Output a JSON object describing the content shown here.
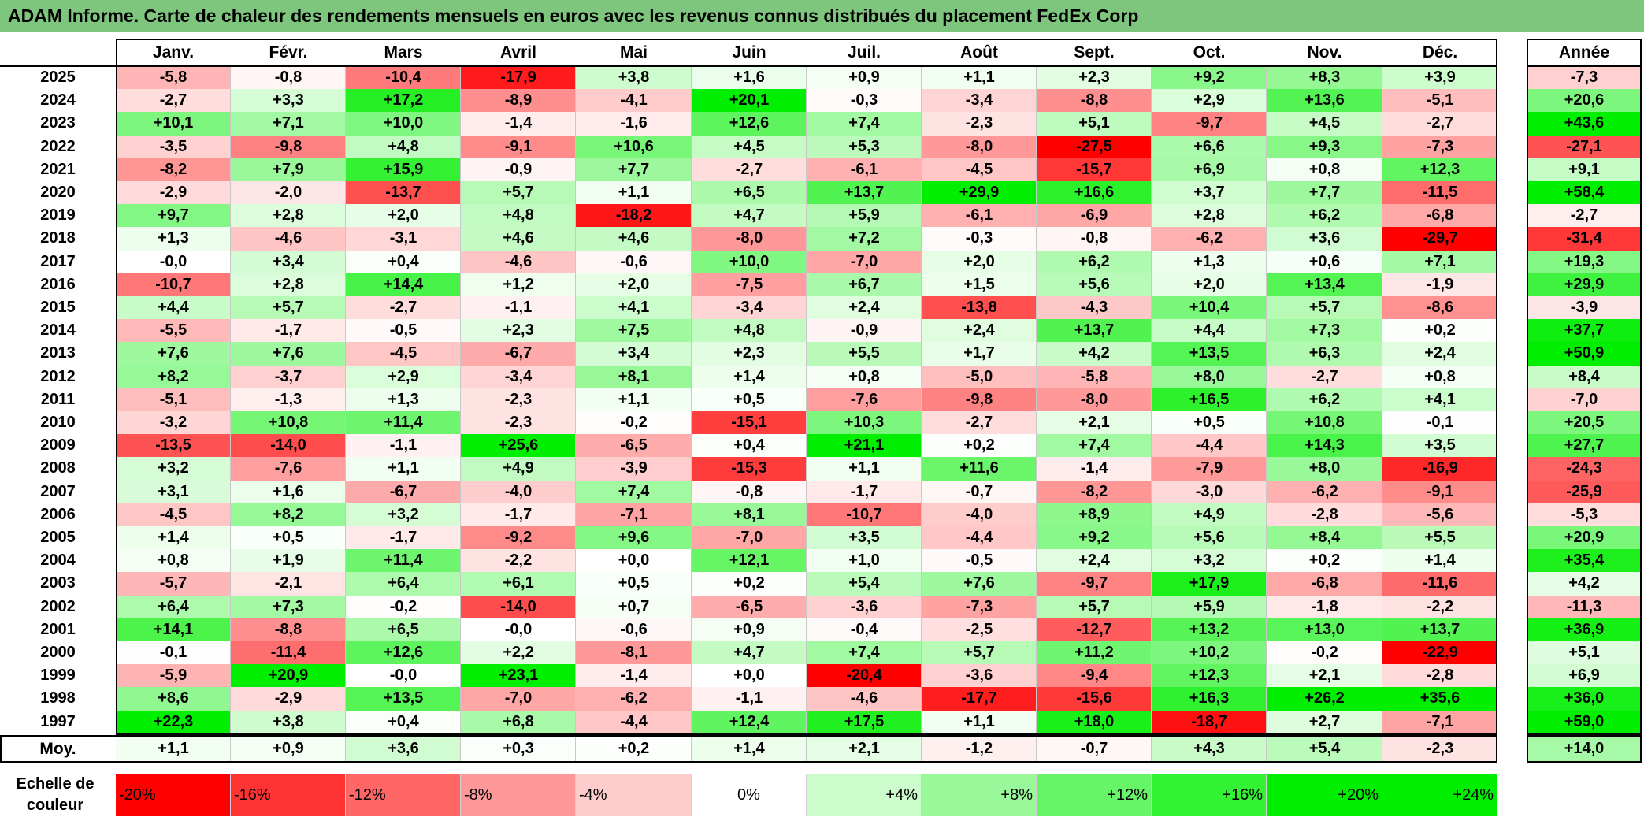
{
  "title": "ADAM Informe. Carte de chaleur des rendements mensuels en euros avec les revenus connus distribués du placement FedEx Corp",
  "chart_data": {
    "type": "heatmap",
    "title": "ADAM Informe. Carte de chaleur des rendements mensuels en euros avec les revenus connus distribués du placement FedEx Corp",
    "months": [
      "Janv.",
      "Févr.",
      "Mars",
      "Avril",
      "Mai",
      "Juin",
      "Juil.",
      "Août",
      "Sept.",
      "Oct.",
      "Nov.",
      "Déc."
    ],
    "year_header": "Année",
    "rows": [
      {
        "year": "2025",
        "values": [
          "-5,8",
          "-0,8",
          "-10,4",
          "-17,9",
          "+3,8",
          "+1,6",
          "+0,9",
          "+1,1",
          "+2,3",
          "+9,2",
          "+8,3",
          "+3,9"
        ],
        "annual": "-7,3"
      },
      {
        "year": "2024",
        "values": [
          "-2,7",
          "+3,3",
          "+17,2",
          "-8,9",
          "-4,1",
          "+20,1",
          "-0,3",
          "-3,4",
          "-8,8",
          "+2,9",
          "+13,6",
          "-5,1"
        ],
        "annual": "+20,6"
      },
      {
        "year": "2023",
        "values": [
          "+10,1",
          "+7,1",
          "+10,0",
          "-1,4",
          "-1,6",
          "+12,6",
          "+7,4",
          "-2,3",
          "+5,1",
          "-9,7",
          "+4,5",
          "-2,7"
        ],
        "annual": "+43,6"
      },
      {
        "year": "2022",
        "values": [
          "-3,5",
          "-9,8",
          "+4,8",
          "-9,1",
          "+10,6",
          "+4,5",
          "+5,3",
          "-8,0",
          "-27,5",
          "+6,6",
          "+9,3",
          "-7,3"
        ],
        "annual": "-27,1"
      },
      {
        "year": "2021",
        "values": [
          "-8,2",
          "+7,9",
          "+15,9",
          "-0,9",
          "+7,7",
          "-2,7",
          "-6,1",
          "-4,5",
          "-15,7",
          "+6,9",
          "+0,8",
          "+12,3"
        ],
        "annual": "+9,1"
      },
      {
        "year": "2020",
        "values": [
          "-2,9",
          "-2,0",
          "-13,7",
          "+5,7",
          "+1,1",
          "+6,5",
          "+13,7",
          "+29,9",
          "+16,6",
          "+3,7",
          "+7,7",
          "-11,5"
        ],
        "annual": "+58,4"
      },
      {
        "year": "2019",
        "values": [
          "+9,7",
          "+2,8",
          "+2,0",
          "+4,8",
          "-18,2",
          "+4,7",
          "+5,9",
          "-6,1",
          "-6,9",
          "+2,8",
          "+6,2",
          "-6,8"
        ],
        "annual": "-2,7"
      },
      {
        "year": "2018",
        "values": [
          "+1,3",
          "-4,6",
          "-3,1",
          "+4,6",
          "+4,6",
          "-8,0",
          "+7,2",
          "-0,3",
          "-0,8",
          "-6,2",
          "+3,6",
          "-29,7"
        ],
        "annual": "-31,4"
      },
      {
        "year": "2017",
        "values": [
          "-0,0",
          "+3,4",
          "+0,4",
          "-4,6",
          "-0,6",
          "+10,0",
          "-7,0",
          "+2,0",
          "+6,2",
          "+1,3",
          "+0,6",
          "+7,1"
        ],
        "annual": "+19,3"
      },
      {
        "year": "2016",
        "values": [
          "-10,7",
          "+2,8",
          "+14,4",
          "+1,2",
          "+2,0",
          "-7,5",
          "+6,7",
          "+1,5",
          "+5,6",
          "+2,0",
          "+13,4",
          "-1,9"
        ],
        "annual": "+29,9"
      },
      {
        "year": "2015",
        "values": [
          "+4,4",
          "+5,7",
          "-2,7",
          "-1,1",
          "+4,1",
          "-3,4",
          "+2,4",
          "-13,8",
          "-4,3",
          "+10,4",
          "+5,7",
          "-8,6"
        ],
        "annual": "-3,9"
      },
      {
        "year": "2014",
        "values": [
          "-5,5",
          "-1,7",
          "-0,5",
          "+2,3",
          "+7,5",
          "+4,8",
          "-0,9",
          "+2,4",
          "+13,7",
          "+4,4",
          "+7,3",
          "+0,2"
        ],
        "annual": "+37,7"
      },
      {
        "year": "2013",
        "values": [
          "+7,6",
          "+7,6",
          "-4,5",
          "-6,7",
          "+3,4",
          "+2,3",
          "+5,5",
          "+1,7",
          "+4,2",
          "+13,5",
          "+6,3",
          "+2,4"
        ],
        "annual": "+50,9"
      },
      {
        "year": "2012",
        "values": [
          "+8,2",
          "-3,7",
          "+2,9",
          "-3,4",
          "+8,1",
          "+1,4",
          "+0,8",
          "-5,0",
          "-5,8",
          "+8,0",
          "-2,7",
          "+0,8"
        ],
        "annual": "+8,4"
      },
      {
        "year": "2011",
        "values": [
          "-5,1",
          "-1,3",
          "+1,3",
          "-2,3",
          "+1,1",
          "+0,5",
          "-7,6",
          "-9,8",
          "-8,0",
          "+16,5",
          "+6,2",
          "+4,1"
        ],
        "annual": "-7,0"
      },
      {
        "year": "2010",
        "values": [
          "-3,2",
          "+10,8",
          "+11,4",
          "-2,3",
          "-0,2",
          "-15,1",
          "+10,3",
          "-2,7",
          "+2,1",
          "+0,5",
          "+10,8",
          "-0,1"
        ],
        "annual": "+20,5"
      },
      {
        "year": "2009",
        "values": [
          "-13,5",
          "-14,0",
          "-1,1",
          "+25,6",
          "-6,5",
          "+0,4",
          "+21,1",
          "+0,2",
          "+7,4",
          "-4,4",
          "+14,3",
          "+3,5"
        ],
        "annual": "+27,7"
      },
      {
        "year": "2008",
        "values": [
          "+3,2",
          "-7,6",
          "+1,1",
          "+4,9",
          "-3,9",
          "-15,3",
          "+1,1",
          "+11,6",
          "-1,4",
          "-7,9",
          "+8,0",
          "-16,9"
        ],
        "annual": "-24,3"
      },
      {
        "year": "2007",
        "values": [
          "+3,1",
          "+1,6",
          "-6,7",
          "-4,0",
          "+7,4",
          "-0,8",
          "-1,7",
          "-0,7",
          "-8,2",
          "-3,0",
          "-6,2",
          "-9,1"
        ],
        "annual": "-25,9"
      },
      {
        "year": "2006",
        "values": [
          "-4,5",
          "+8,2",
          "+3,2",
          "-1,7",
          "-7,1",
          "+8,1",
          "-10,7",
          "-4,0",
          "+8,9",
          "+4,9",
          "-2,8",
          "-5,6"
        ],
        "annual": "-5,3"
      },
      {
        "year": "2005",
        "values": [
          "+1,4",
          "+0,5",
          "-1,7",
          "-9,2",
          "+9,6",
          "-7,0",
          "+3,5",
          "-4,4",
          "+9,2",
          "+5,6",
          "+8,4",
          "+5,5"
        ],
        "annual": "+20,9"
      },
      {
        "year": "2004",
        "values": [
          "+0,8",
          "+1,9",
          "+11,4",
          "-2,2",
          "+0,0",
          "+12,1",
          "+1,0",
          "-0,5",
          "+2,4",
          "+3,2",
          "+0,2",
          "+1,4"
        ],
        "annual": "+35,4"
      },
      {
        "year": "2003",
        "values": [
          "-5,7",
          "-2,1",
          "+6,4",
          "+6,1",
          "+0,5",
          "+0,2",
          "+5,4",
          "+7,6",
          "-9,7",
          "+17,9",
          "-6,8",
          "-11,6"
        ],
        "annual": "+4,2"
      },
      {
        "year": "2002",
        "values": [
          "+6,4",
          "+7,3",
          "-0,2",
          "-14,0",
          "+0,7",
          "-6,5",
          "-3,6",
          "-7,3",
          "+5,7",
          "+5,9",
          "-1,8",
          "-2,2"
        ],
        "annual": "-11,3"
      },
      {
        "year": "2001",
        "values": [
          "+14,1",
          "-8,8",
          "+6,5",
          "-0,0",
          "-0,6",
          "+0,9",
          "-0,4",
          "-2,5",
          "-12,7",
          "+13,2",
          "+13,0",
          "+13,7"
        ],
        "annual": "+36,9"
      },
      {
        "year": "2000",
        "values": [
          "-0,1",
          "-11,4",
          "+12,6",
          "+2,2",
          "-8,1",
          "+4,7",
          "+7,4",
          "+5,7",
          "+11,2",
          "+10,2",
          "-0,2",
          "-22,9"
        ],
        "annual": "+5,1"
      },
      {
        "year": "1999",
        "values": [
          "-5,9",
          "+20,9",
          "-0,0",
          "+23,1",
          "-1,4",
          "+0,0",
          "-20,4",
          "-3,6",
          "-9,4",
          "+12,3",
          "+2,1",
          "-2,8"
        ],
        "annual": "+6,9"
      },
      {
        "year": "1998",
        "values": [
          "+8,6",
          "-2,9",
          "+13,5",
          "-7,0",
          "-6,2",
          "-1,1",
          "-4,6",
          "-17,7",
          "-15,6",
          "+16,3",
          "+26,2",
          "+35,6"
        ],
        "annual": "+36,0"
      },
      {
        "year": "1997",
        "values": [
          "+22,3",
          "+3,8",
          "+0,4",
          "+6,8",
          "-4,4",
          "+12,4",
          "+17,5",
          "+1,1",
          "+18,0",
          "-18,7",
          "+2,7",
          "-7,1"
        ],
        "annual": "+59,0"
      }
    ],
    "average": {
      "label": "Moy.",
      "values": [
        "+1,1",
        "+0,9",
        "+3,6",
        "+0,3",
        "+0,2",
        "+1,4",
        "+2,1",
        "-1,2",
        "-0,7",
        "+4,3",
        "+5,4",
        "-2,3"
      ],
      "annual": "+14,0"
    },
    "scale": {
      "label": "Echelle de couleur",
      "steps": [
        "-20%",
        "-16%",
        "-12%",
        "-8%",
        "-4%",
        "0%",
        "+4%",
        "+8%",
        "+12%",
        "+16%",
        "+20%",
        "+24%"
      ],
      "step_values": [
        -20,
        -16,
        -12,
        -8,
        -4,
        0,
        4,
        8,
        12,
        16,
        20,
        24
      ]
    },
    "colors": {
      "negative_max": "#ff0000",
      "neutral": "#ffffff",
      "positive_max": "#00ee00",
      "title_bar": "#7ec57e"
    }
  }
}
